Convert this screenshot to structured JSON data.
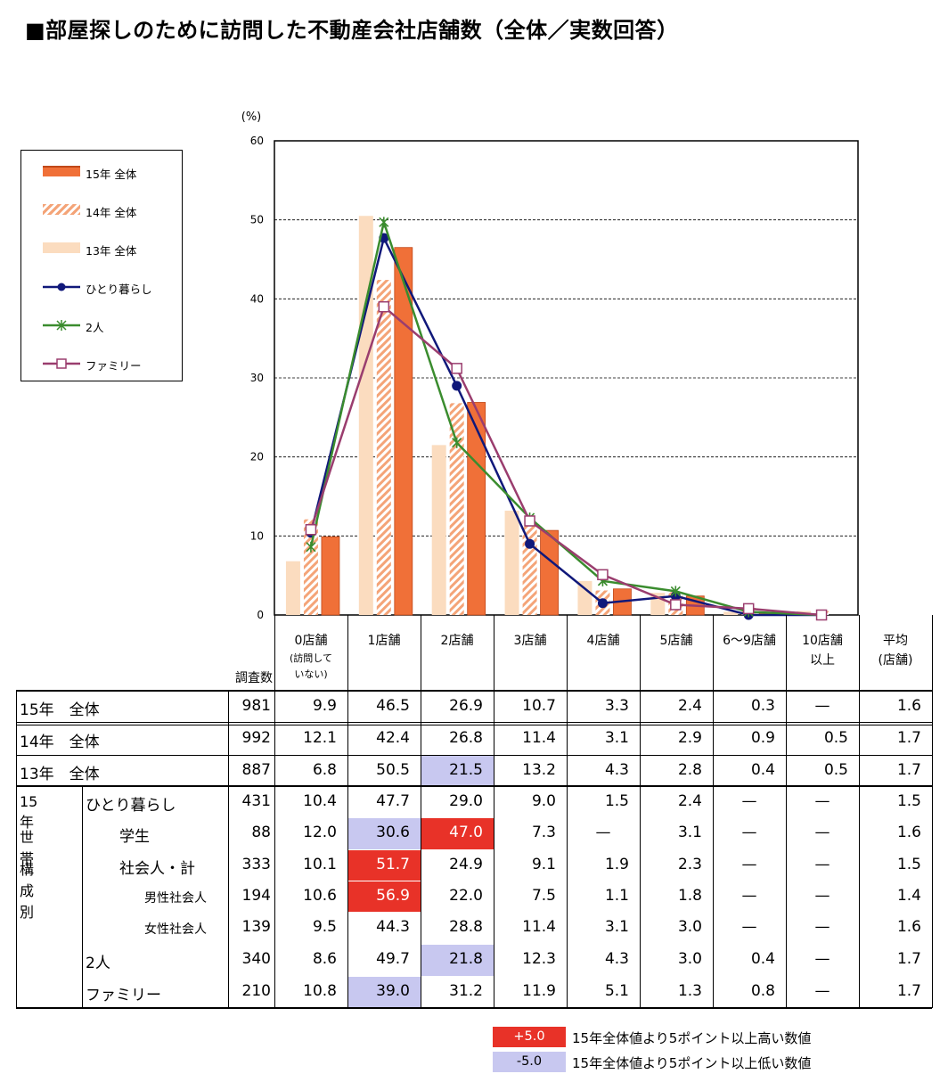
{
  "title": "■部屋探しのために訪問した不動産会社店舗数（全体／実数回答）",
  "colors": {
    "y15": "#f07038",
    "y14_stripe": "#f4a478",
    "y13": "#fbdcbf",
    "single": "#10187a",
    "two": "#3a8c2e",
    "family": "#9a3d6e",
    "high": "#e83228",
    "low": "#c8c8f0"
  },
  "legend": [
    {
      "label": "15年 全体",
      "style": "solid-bar"
    },
    {
      "label": "14年 全体",
      "style": "hatched-bar"
    },
    {
      "label": "13年 全体",
      "style": "light-bar"
    },
    {
      "label": "ひとり暮らし",
      "style": "line-circle"
    },
    {
      "label": "2人",
      "style": "line-star"
    },
    {
      "label": "ファミリー",
      "style": "line-square"
    }
  ],
  "chart_data": {
    "type": "bar",
    "ylabel": "(%)",
    "ylim": [
      0,
      60
    ],
    "yticks": [
      "0",
      "10",
      "20",
      "30",
      "40",
      "50",
      "60"
    ],
    "grid": true,
    "legend_position": "left",
    "categories": [
      "0店舗",
      "1店舗",
      "2店舗",
      "3店舗",
      "4店舗",
      "5店舗",
      "6〜9店舗",
      "10店舗以上"
    ],
    "bar_series": [
      {
        "name": "13年 全体",
        "values": [
          6.8,
          50.5,
          21.5,
          13.2,
          4.3,
          2.8,
          0.4,
          0.5
        ]
      },
      {
        "name": "14年 全体",
        "values": [
          12.1,
          42.4,
          26.8,
          11.4,
          3.1,
          2.9,
          0.9,
          0.5
        ]
      },
      {
        "name": "15年 全体",
        "values": [
          9.9,
          46.5,
          26.9,
          10.7,
          3.3,
          2.4,
          0.3,
          0
        ]
      }
    ],
    "line_series": [
      {
        "name": "ひとり暮らし",
        "values": [
          10.4,
          47.7,
          29.0,
          9.0,
          1.5,
          2.4,
          0,
          0
        ]
      },
      {
        "name": "2人",
        "values": [
          8.6,
          49.7,
          21.8,
          12.3,
          4.3,
          3.0,
          0.4,
          0
        ]
      },
      {
        "name": "ファミリー",
        "values": [
          10.8,
          39.0,
          31.2,
          11.9,
          5.1,
          1.3,
          0.8,
          0
        ]
      }
    ]
  },
  "table": {
    "n_header": "調査数",
    "headers": [
      {
        "l1": "0店舗",
        "l2": "(訪問して",
        "l3": "いない)"
      },
      {
        "l1": "1店舗",
        "l2": "",
        "l3": ""
      },
      {
        "l1": "2店舗",
        "l2": "",
        "l3": ""
      },
      {
        "l1": "3店舗",
        "l2": "",
        "l3": ""
      },
      {
        "l1": "4店舗",
        "l2": "",
        "l3": ""
      },
      {
        "l1": "5店舗",
        "l2": "",
        "l3": ""
      },
      {
        "l1": "6〜9店舗",
        "l2": "",
        "l3": ""
      },
      {
        "l1": "10店舗",
        "l2": "以上",
        "l3": ""
      },
      {
        "l1": "平均",
        "l2": "(店舗)",
        "l3": ""
      }
    ],
    "group_label": [
      "15年",
      "世帯",
      "構成別"
    ],
    "rows": [
      {
        "label": "15年　全体",
        "indent": 0,
        "n": "981",
        "v": [
          "9.9",
          "46.5",
          "26.9",
          "10.7",
          "3.3",
          "2.4",
          "0.3",
          "—",
          "1.6"
        ],
        "hl": [
          "",
          "",
          "",
          "",
          "",
          "",
          "",
          "",
          ""
        ]
      },
      {
        "label": "14年　全体",
        "indent": 0,
        "n": "992",
        "v": [
          "12.1",
          "42.4",
          "26.8",
          "11.4",
          "3.1",
          "2.9",
          "0.9",
          "0.5",
          "1.7"
        ],
        "hl": [
          "",
          "",
          "",
          "",
          "",
          "",
          "",
          "",
          ""
        ]
      },
      {
        "label": "13年　全体",
        "indent": 0,
        "n": "887",
        "v": [
          "6.8",
          "50.5",
          "21.5",
          "13.2",
          "4.3",
          "2.8",
          "0.4",
          "0.5",
          "1.7"
        ],
        "hl": [
          "",
          "",
          "low",
          "",
          "",
          "",
          "",
          "",
          ""
        ]
      },
      {
        "label": "ひとり暮らし",
        "indent": 1,
        "n": "431",
        "v": [
          "10.4",
          "47.7",
          "29.0",
          "9.0",
          "1.5",
          "2.4",
          "—",
          "—",
          "1.5"
        ],
        "hl": [
          "",
          "",
          "",
          "",
          "",
          "",
          "",
          "",
          ""
        ]
      },
      {
        "label": "学生",
        "indent": 2,
        "n": "88",
        "v": [
          "12.0",
          "30.6",
          "47.0",
          "7.3",
          "—",
          "3.1",
          "—",
          "—",
          "1.6"
        ],
        "hl": [
          "",
          "low",
          "high",
          "",
          "",
          "",
          "",
          "",
          ""
        ]
      },
      {
        "label": "社会人・計",
        "indent": 2,
        "n": "333",
        "v": [
          "10.1",
          "51.7",
          "24.9",
          "9.1",
          "1.9",
          "2.3",
          "—",
          "—",
          "1.5"
        ],
        "hl": [
          "",
          "high",
          "",
          "",
          "",
          "",
          "",
          "",
          ""
        ]
      },
      {
        "label": "男性社会人",
        "indent": 3,
        "n": "194",
        "v": [
          "10.6",
          "56.9",
          "22.0",
          "7.5",
          "1.1",
          "1.8",
          "—",
          "—",
          "1.4"
        ],
        "hl": [
          "",
          "high",
          "",
          "",
          "",
          "",
          "",
          "",
          ""
        ]
      },
      {
        "label": "女性社会人",
        "indent": 3,
        "n": "139",
        "v": [
          "9.5",
          "44.3",
          "28.8",
          "11.4",
          "3.1",
          "3.0",
          "—",
          "—",
          "1.6"
        ],
        "hl": [
          "",
          "",
          "",
          "",
          "",
          "",
          "",
          "",
          ""
        ]
      },
      {
        "label": "2人",
        "indent": 1,
        "n": "340",
        "v": [
          "8.6",
          "49.7",
          "21.8",
          "12.3",
          "4.3",
          "3.0",
          "0.4",
          "—",
          "1.7"
        ],
        "hl": [
          "",
          "",
          "low",
          "",
          "",
          "",
          "",
          "",
          ""
        ]
      },
      {
        "label": "ファミリー",
        "indent": 1,
        "n": "210",
        "v": [
          "10.8",
          "39.0",
          "31.2",
          "11.9",
          "5.1",
          "1.3",
          "0.8",
          "—",
          "1.7"
        ],
        "hl": [
          "",
          "low",
          "",
          "",
          "",
          "",
          "",
          "",
          ""
        ]
      }
    ]
  },
  "notes": [
    {
      "badge": "+5.0",
      "text": "15年全体値より5ポイント以上高い数値",
      "kind": "high"
    },
    {
      "badge": "-5.0",
      "text": "15年全体値より5ポイント以上低い数値",
      "kind": "low"
    }
  ]
}
